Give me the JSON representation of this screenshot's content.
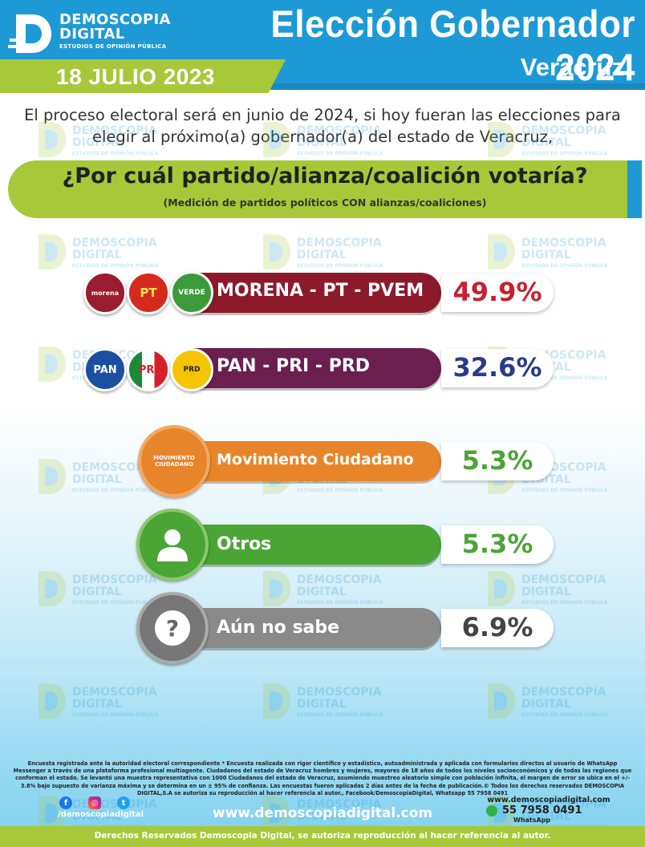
{
  "brand": {
    "name": "DEMOSCOPIA\nDIGITAL",
    "tagline": "ESTUDIOS DE OPINIÓN PÚBLICA"
  },
  "header": {
    "title": "Elección Gobernador 2024",
    "state": "Veracruz",
    "date": "18 JULIO 2023"
  },
  "intro": "El proceso electoral será en junio de 2024, si hoy fueran las elecciones para elegir al próximo(a) gobernador(a) del estado de Veracruz,",
  "question": {
    "text": "¿Por cuál partido/alianza/coalición votaría?",
    "subtitle": "(Medición de partidos políticos CON alianzas/coaliciones)"
  },
  "logos": {
    "morena": "morena",
    "pt": "PT",
    "verde": "VERDE",
    "pan": "PAN",
    "pri": "PRI",
    "prd": "PRD",
    "mc": "MOVIMIENTO\nCIUDADANO",
    "otros": "person-icon",
    "nosabe": "?"
  },
  "chart_data": {
    "type": "bar",
    "categories": [
      "MORENA - PT - PVEM",
      "PAN - PRI - PRD",
      "Movimiento Ciudadano",
      "Otros",
      "Aún no sabe"
    ],
    "values": [
      49.9,
      32.6,
      5.3,
      5.3,
      6.9
    ],
    "value_labels": [
      "49.9%",
      "32.6%",
      "5.3%",
      "5.3%",
      "6.9%"
    ],
    "colors": [
      "#8c1a2a",
      "#6a1f4e",
      "#e8852a",
      "#4aa535",
      "#8a8a8a"
    ],
    "value_colors": [
      "#c8202f",
      "#2b3a8c",
      "#4aa535",
      "#4aa535",
      "#444444"
    ],
    "title": "¿Por cuál partido/alianza/coalición votaría?"
  },
  "footer": {
    "methodology": "Encuesta registrada ante la autoridad electoral correspondiente * Encuesta realizada con rigor científico y estadístico, autoadministrada y aplicada con formularios directos al usuario de WhatsApp Messenger a través de una plataforma profesional multiagente. Ciudadanos del estado de Veracruz hombres y mujeres, mayores de 18 años de todos los niveles socioeconómicos y de todas las regiones que conforman el estado. Se levantó una muestra representativa con 1000 Ciudadanos del estado de Veracruz, asumiendo muestreo aleatorio simple con población infinita, el margen de error se ubica en el +/- 3.8% bajo supuesto de varianza máxima y se determina en un ± 95% de confianza. Las encuestas fueron aplicadas 2 días antes de la fecha de publicación.© Todos los derechos reservados DEMOSCOPIA DIGITAL,S.A se autoriza su reproducción al hacer referencia al autor., Facebook/DemoscopiaDigital, Whatsapp 55 7958 0491",
    "website": "www.demoscopiadigital.com",
    "handle": "/demoscopiadigital",
    "contact_web": "www.demoscopiadigital.com",
    "contact_phone": "55 7958 0491",
    "contact_label": "WhatsApp",
    "rights": "Derechos Reservados Demoscopia Digital, se autoriza reproducción al hacer referencia al autor."
  }
}
